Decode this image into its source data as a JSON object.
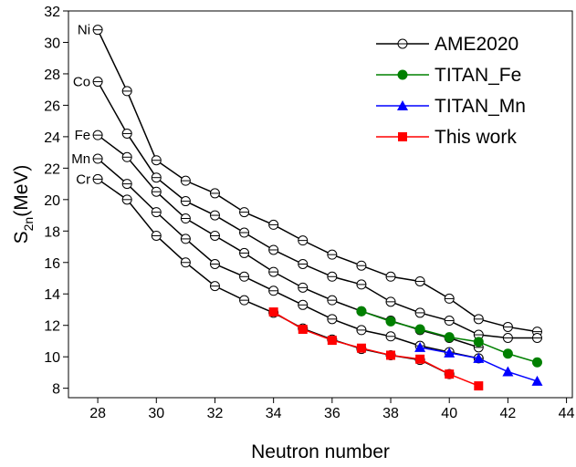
{
  "chart_data": {
    "type": "line",
    "xlabel": "Neutron number",
    "ylabel": {
      "main": "S",
      "sub": "2n",
      "unit": "(MeV)"
    },
    "xlim": [
      27,
      44.2
    ],
    "ylim": [
      7.4,
      32
    ],
    "xticks": [
      28,
      30,
      32,
      34,
      36,
      38,
      40,
      42,
      44
    ],
    "yticks": [
      8,
      10,
      12,
      14,
      16,
      18,
      20,
      22,
      24,
      26,
      28,
      30,
      32
    ],
    "legend": "upper right",
    "series": [
      {
        "name": "AME2020",
        "color": "#000000",
        "marker": "open-circle",
        "groups": [
          {
            "label": "Ni",
            "x": [
              28,
              29,
              30,
              31,
              32,
              33,
              34,
              35,
              36,
              37,
              38,
              39,
              40,
              41,
              42,
              43
            ],
            "values": [
              30.8,
              26.9,
              22.5,
              21.2,
              20.4,
              19.2,
              18.4,
              17.4,
              16.5,
              15.8,
              15.1,
              14.8,
              13.7,
              12.4,
              11.9,
              11.6
            ]
          },
          {
            "label": "Co",
            "x": [
              28,
              29,
              30,
              31,
              32,
              33,
              34,
              35,
              36,
              37,
              38,
              39,
              40,
              41,
              42,
              43
            ],
            "values": [
              27.5,
              24.2,
              21.4,
              19.9,
              19.0,
              17.9,
              16.8,
              15.9,
              15.1,
              14.6,
              13.5,
              12.8,
              12.3,
              11.4,
              11.2,
              11.2
            ]
          },
          {
            "label": "Fe",
            "x": [
              28,
              29,
              30,
              31,
              32,
              33,
              34,
              35,
              36,
              37,
              38,
              39,
              40,
              41
            ],
            "values": [
              24.1,
              22.7,
              20.5,
              18.8,
              17.7,
              16.6,
              15.4,
              14.4,
              13.6,
              12.9,
              12.3,
              11.7,
              11.2,
              10.6
            ]
          },
          {
            "label": "Mn",
            "x": [
              28,
              29,
              30,
              31,
              32,
              33,
              34,
              35,
              36,
              37,
              38,
              39,
              40,
              41
            ],
            "values": [
              22.6,
              21.0,
              19.2,
              17.5,
              15.9,
              15.1,
              14.2,
              13.3,
              12.4,
              11.7,
              11.3,
              10.7,
              10.3,
              9.9
            ]
          },
          {
            "label": "Cr",
            "x": [
              28,
              29,
              30,
              31,
              32,
              33,
              34,
              35,
              36,
              37,
              38,
              39,
              40
            ],
            "values": [
              21.3,
              20.0,
              17.7,
              16.0,
              14.5,
              13.6,
              12.8,
              11.8,
              11.1,
              10.5,
              10.1,
              9.8,
              8.9
            ]
          }
        ]
      },
      {
        "name": "TITAN_Fe",
        "color": "#008000",
        "marker": "circle",
        "x": [
          37,
          38,
          39,
          40,
          41,
          42,
          43
        ],
        "values": [
          12.9,
          12.25,
          11.75,
          11.25,
          10.95,
          10.2,
          9.65
        ]
      },
      {
        "name": "TITAN_Mn",
        "color": "#0000ff",
        "marker": "triangle",
        "x": [
          39,
          40,
          41,
          42,
          43
        ],
        "values": [
          10.6,
          10.25,
          9.9,
          9.05,
          8.45
        ]
      },
      {
        "name": "This work",
        "color": "#ff0000",
        "marker": "square",
        "x": [
          34,
          35,
          36,
          37,
          38,
          39,
          40,
          41
        ],
        "values": [
          12.85,
          11.75,
          11.05,
          10.55,
          10.1,
          9.85,
          8.9,
          8.15
        ]
      }
    ]
  }
}
